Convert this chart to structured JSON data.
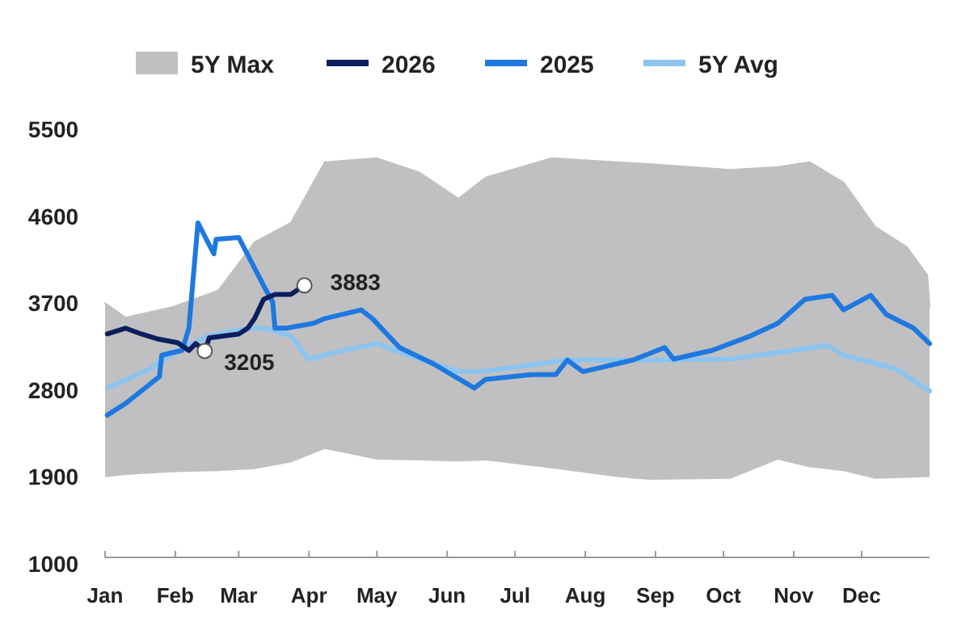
{
  "chart_data": {
    "type": "line",
    "xlim": [
      "--01-01",
      "--12-31"
    ],
    "xticks": [
      {
        "value": "--01-01",
        "label": "Jan"
      },
      {
        "value": "--02-01",
        "label": "Feb"
      },
      {
        "value": "--03-01",
        "label": "Mar"
      },
      {
        "value": "--04-01",
        "label": "Apr"
      },
      {
        "value": "--05-01",
        "label": "May"
      },
      {
        "value": "--06-01",
        "label": "Jun"
      },
      {
        "value": "--07-01",
        "label": "Jul"
      },
      {
        "value": "--08-01",
        "label": "Aug"
      },
      {
        "value": "--09-01",
        "label": "Sep"
      },
      {
        "value": "--10-01",
        "label": "Oct"
      },
      {
        "value": "--11-01",
        "label": "Nov"
      },
      {
        "value": "--12-01",
        "label": "Dec"
      }
    ],
    "ylim": [
      1000,
      5500
    ],
    "yticks": [
      1000,
      1900,
      2800,
      3700,
      4600,
      5500
    ],
    "grid": false,
    "legend": "top",
    "series": [
      {
        "name": "5Y Max",
        "color": "#c0c0c2",
        "upper": [
          3700,
          3550,
          3660,
          3830,
          4330,
          4530,
          5160,
          5200,
          5050,
          4780,
          5000,
          5200,
          5160,
          5140,
          5080,
          5110,
          5160,
          4950,
          4490,
          4280,
          3990,
          3660
        ],
        "lower": [
          1900,
          1920,
          1950,
          1960,
          1980,
          2050,
          2190,
          2080,
          2070,
          2060,
          2070,
          1990,
          1900,
          1870,
          1880,
          2080,
          2000,
          1960,
          1880,
          1890,
          1900,
          1900
        ],
        "x": [
          "--01-01",
          "--01-10",
          "--01-31",
          "--02-20",
          "--03-08",
          "--03-24",
          "--04-08",
          "--05-01",
          "--05-20",
          "--06-06",
          "--06-18",
          "--07-17",
          "--08-15",
          "--08-29",
          "--10-04",
          "--10-25",
          "--11-08",
          "--11-23",
          "--12-07",
          "--12-21",
          "--12-30",
          "--12-31"
        ],
        "values": [
          3700,
          3550,
          3660,
          3830,
          4330,
          4530,
          5160,
          5200,
          5050,
          4780,
          5000,
          5200,
          5160,
          5140,
          5080,
          5110,
          5160,
          4950,
          4490,
          4280,
          3990,
          3660
        ]
      },
      {
        "name": "2026",
        "color": "#0b1f5e",
        "x": [
          "--01-02",
          "--01-10",
          "--01-17",
          "--01-24",
          "--02-02",
          "--02-07",
          "--02-10",
          "--02-14",
          "--02-16",
          "--03-01",
          "--03-05",
          "--03-08",
          "--03-12",
          "--03-17",
          "--03-24",
          "--03-30"
        ],
        "values": [
          3380,
          3440,
          3380,
          3330,
          3290,
          3210,
          3280,
          3205,
          3340,
          3380,
          3440,
          3540,
          3740,
          3790,
          3790,
          3883
        ]
      },
      {
        "name": "2025",
        "color": "#1e78e0",
        "x": [
          "--01-02",
          "--01-10",
          "--01-17",
          "--01-25",
          "--01-26",
          "--02-04",
          "--02-07",
          "--02-11",
          "--02-18",
          "--02-19",
          "--03-01",
          "--03-12",
          "--03-16",
          "--03-17",
          "--03-22",
          "--04-03",
          "--04-08",
          "--04-24",
          "--04-29",
          "--05-11",
          "--05-26",
          "--06-13",
          "--06-18",
          "--07-08",
          "--07-19",
          "--07-24",
          "--07-31",
          "--08-22",
          "--09-05",
          "--09-09",
          "--09-26",
          "--10-13",
          "--10-25",
          "--11-06",
          "--11-18",
          "--11-23",
          "--12-05",
          "--12-12",
          "--12-24",
          "--12-31"
        ],
        "values": [
          2540,
          2660,
          2790,
          2940,
          3160,
          3210,
          3440,
          4530,
          4210,
          4360,
          4380,
          3880,
          3710,
          3440,
          3440,
          3490,
          3540,
          3630,
          3540,
          3240,
          3070,
          2820,
          2910,
          2960,
          2960,
          3110,
          2990,
          3110,
          3240,
          3120,
          3210,
          3360,
          3490,
          3740,
          3780,
          3630,
          3780,
          3580,
          3440,
          3280
        ]
      },
      {
        "name": "5Y Avg",
        "color": "#8cc4f0",
        "x": [
          "--01-02",
          "--01-21",
          "--02-02",
          "--02-16",
          "--03-05",
          "--03-13",
          "--03-24",
          "--04-01",
          "--04-16",
          "--05-01",
          "--05-15",
          "--06-06",
          "--06-16",
          "--07-24",
          "--08-29",
          "--10-04",
          "--11-16",
          "--11-23",
          "--12-16",
          "--12-31"
        ],
        "values": [
          2820,
          3020,
          3210,
          3360,
          3440,
          3440,
          3360,
          3120,
          3210,
          3280,
          3160,
          2990,
          2990,
          3110,
          3110,
          3120,
          3260,
          3160,
          3020,
          2790
        ]
      }
    ],
    "annotations": [
      {
        "text": "3205",
        "x": "--02-14",
        "y": 3205
      },
      {
        "text": "3883",
        "x": "--03-30",
        "y": 3883
      }
    ]
  }
}
